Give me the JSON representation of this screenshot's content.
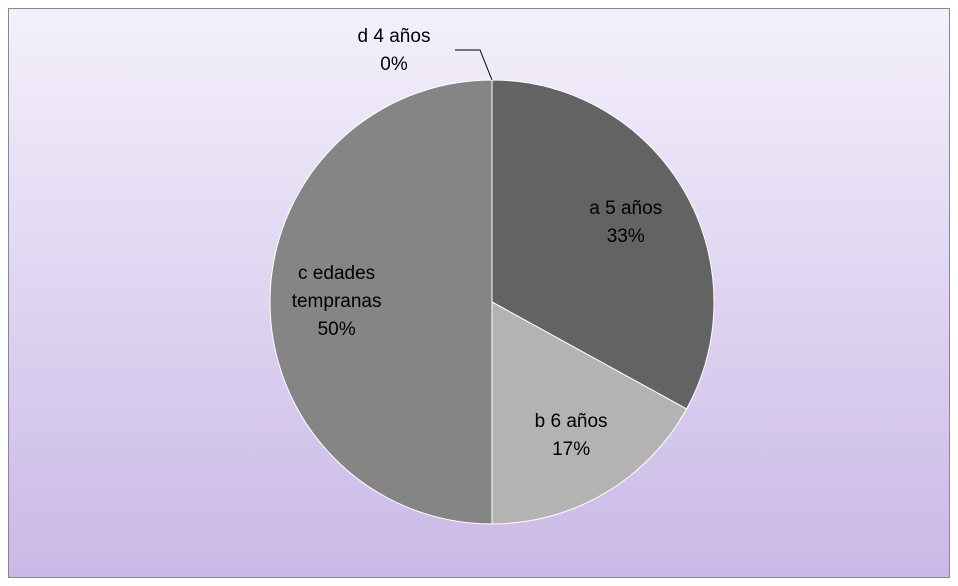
{
  "chart_data": {
    "type": "pie",
    "categories": [
      "a 5 años",
      "b 6 años",
      "c edades tempranas",
      "d 4 años"
    ],
    "values": [
      33,
      17,
      50,
      0
    ],
    "value_labels": [
      "33%",
      "17%",
      "50%",
      "0%"
    ],
    "colors": [
      "#636363",
      "#b3b3b3",
      "#858585",
      "#9a9a9a"
    ]
  }
}
